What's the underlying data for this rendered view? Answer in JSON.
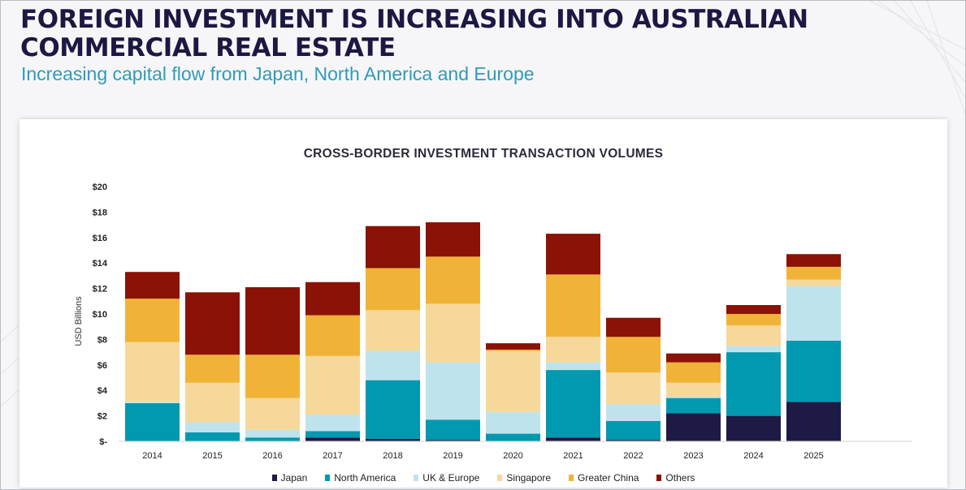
{
  "header": {
    "title": "FOREIGN INVESTMENT IS INCREASING INTO AUSTRALIAN COMMERCIAL REAL ESTATE",
    "subtitle": "Increasing capital flow from Japan, North America and Europe"
  },
  "chart_data": {
    "type": "bar",
    "stacked": true,
    "title": "CROSS-BORDER INVESTMENT TRANSACTION VOLUMES",
    "xlabel": "",
    "ylabel": "USD Billions",
    "ylim": [
      0,
      20
    ],
    "yticks": [
      0,
      2,
      4,
      6,
      8,
      10,
      12,
      14,
      16,
      18,
      20
    ],
    "ytick_labels": [
      "$-",
      "$2",
      "$4",
      "$6",
      "$8",
      "$10",
      "$12",
      "$14",
      "$16",
      "$18",
      "$20"
    ],
    "grid": false,
    "legend_position": "bottom",
    "categories": [
      "2014",
      "2015",
      "2016",
      "2017",
      "2018",
      "2019",
      "2020",
      "2021",
      "2022",
      "2023",
      "2024",
      "2025"
    ],
    "series": [
      {
        "name": "Japan",
        "color": "#1e1a46",
        "values": [
          0.0,
          0.0,
          0.0,
          0.3,
          0.2,
          0.1,
          0.0,
          0.3,
          0.1,
          2.2,
          2.0,
          3.1
        ]
      },
      {
        "name": "North America",
        "color": "#0099b0",
        "values": [
          3.0,
          0.7,
          0.3,
          0.5,
          4.6,
          1.6,
          0.6,
          5.3,
          1.5,
          1.2,
          5.0,
          4.8
        ]
      },
      {
        "name": "UK & Europe",
        "color": "#bfe3ec",
        "values": [
          0.1,
          0.8,
          0.6,
          1.3,
          2.3,
          4.5,
          1.7,
          0.6,
          1.3,
          0.1,
          0.5,
          4.3
        ]
      },
      {
        "name": "Singapore",
        "color": "#f6d89b",
        "values": [
          4.7,
          3.1,
          2.5,
          4.6,
          3.2,
          4.6,
          4.8,
          2.0,
          2.5,
          1.1,
          1.6,
          0.5
        ]
      },
      {
        "name": "Greater China",
        "color": "#f0b338",
        "values": [
          3.4,
          2.2,
          3.4,
          3.2,
          3.3,
          3.7,
          0.1,
          4.9,
          2.8,
          1.6,
          0.9,
          1.0
        ]
      },
      {
        "name": "Others",
        "color": "#8b1206",
        "values": [
          2.1,
          4.9,
          5.3,
          2.6,
          3.3,
          2.7,
          0.5,
          3.2,
          1.5,
          0.7,
          0.7,
          1.0
        ]
      }
    ]
  }
}
